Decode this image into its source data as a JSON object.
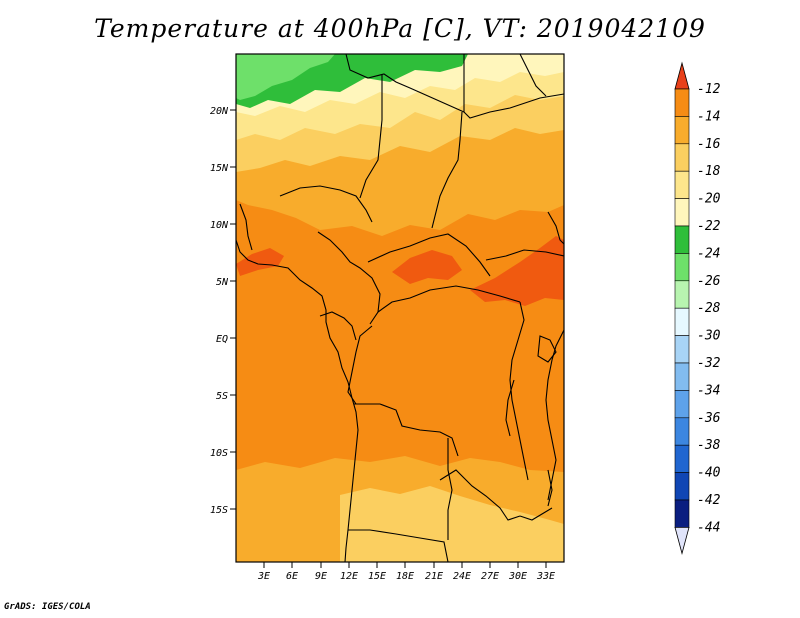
{
  "title": "Temperature at 400hPa [C], VT: 2019042109",
  "credit": "GrADS: IGES/COLA",
  "colors": {
    "c_m12": "#f05a10",
    "c_m14": "#f68c14",
    "c_m16": "#f8ac2c",
    "c_m18": "#fbcf60",
    "c_m20": "#fde68c",
    "c_m22": "#fff6bc",
    "c_m24": "#2fbe3a",
    "c_m26": "#6ee06a",
    "c_m28": "#b8f4b0",
    "c_m30": "#dcf4ff",
    "land": "#000000"
  },
  "map": {
    "lat_labels": [
      "20N",
      "15N",
      "10N",
      "5N",
      "EQ",
      "5S",
      "10S",
      "15S"
    ],
    "lon_labels": [
      "3E",
      "6E",
      "9E",
      "12E",
      "15E",
      "18E",
      "21E",
      "24E",
      "27E",
      "30E",
      "33E"
    ]
  },
  "colorbar": {
    "labels": [
      "-12",
      "-14",
      "-16",
      "-18",
      "-20",
      "-22",
      "-24",
      "-26",
      "-28",
      "-30",
      "-32",
      "-34",
      "-36",
      "-38",
      "-40",
      "-42",
      "-44"
    ],
    "colors": [
      "#f05a10",
      "#f68c14",
      "#f8ac2c",
      "#fbcf60",
      "#fde68c",
      "#fff6bc",
      "#2fbe3a",
      "#6ee06a",
      "#b8f4b0",
      "#e6f8ff",
      "#a8d4f6",
      "#82bcf0",
      "#5ea2ea",
      "#3c86e0",
      "#2066d0",
      "#1046b4",
      "#0a1e80"
    ],
    "top_arrow_color": "#e8401a",
    "bottom_arrow_color": "#e0e4fa"
  }
}
